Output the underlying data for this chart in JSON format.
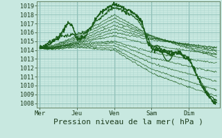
{
  "background_color": "#c8e8e0",
  "grid_color_major": "#90c0b8",
  "grid_color_minor": "#b0d8d0",
  "line_color": "#1a5c1a",
  "xlabel": "Pression niveau de la mer( hPa )",
  "xlabel_fontsize": 8,
  "ytick_labels": [
    1008,
    1009,
    1010,
    1011,
    1012,
    1013,
    1014,
    1015,
    1016,
    1017,
    1018,
    1019
  ],
  "xtick_labels": [
    "Mer",
    "Jeu",
    "Ven",
    "Sam",
    "Dim"
  ],
  "xtick_positions": [
    0,
    24,
    48,
    72,
    96
  ],
  "ymin": 1007.5,
  "ymax": 1019.5,
  "xmin": -2,
  "xmax": 116,
  "total_hours": 114
}
